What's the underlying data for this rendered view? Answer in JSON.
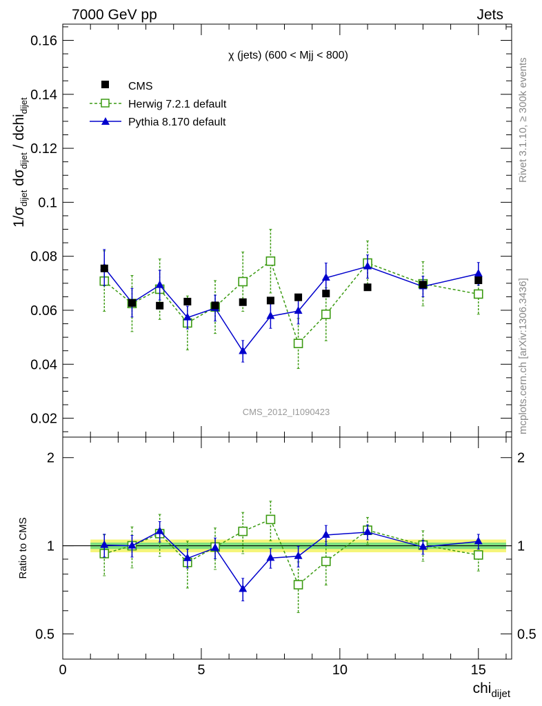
{
  "header": {
    "left": "7000 GeV pp",
    "right": "Jets"
  },
  "side_labels": {
    "rivet": "Rivet 3.1.10, ≥ 300k events",
    "mcplots": "mcplots.cern.ch [arXiv:1306.3436]"
  },
  "chart_data": [
    {
      "type": "scatter",
      "panel": "main",
      "title": "χ (jets) (600 < Mjj <  800)",
      "ylabel_parts": {
        "a": "1/σ",
        "a_sub": "dijet",
        "b": " dσ",
        "b_sub": "dijet",
        "c": " / dchi",
        "c_sub": "dijet"
      },
      "xlim": [
        0,
        16.2
      ],
      "ylim": [
        0.013,
        0.166
      ],
      "yticks": [
        0.02,
        0.04,
        0.06,
        0.08,
        0.1,
        0.12,
        0.14,
        0.16
      ],
      "ytick_labels": [
        "0.02",
        "0.04",
        "0.06",
        "0.08",
        "0.1",
        "0.12",
        "0.14",
        "0.16"
      ],
      "watermark": "CMS_2012_I1090423",
      "legend_position": "top-left",
      "series": [
        {
          "name": "CMS",
          "style": "data",
          "color": "#000000",
          "x": [
            1.5,
            2.5,
            3.5,
            4.5,
            5.5,
            6.5,
            7.5,
            8.5,
            9.5,
            11,
            13,
            15
          ],
          "y": [
            0.0755,
            0.0627,
            0.0617,
            0.0632,
            0.0618,
            0.063,
            0.0636,
            0.0648,
            0.0662,
            0.0685,
            0.0695,
            0.0711
          ]
        },
        {
          "name": "Herwig 7.2.1 default",
          "style": "dashed-open-square",
          "color": "#3a9a10",
          "x": [
            1.5,
            2.5,
            3.5,
            4.5,
            5.5,
            6.5,
            7.5,
            8.5,
            9.5,
            11,
            13,
            15
          ],
          "y": [
            0.0708,
            0.0625,
            0.0678,
            0.0553,
            0.0612,
            0.0706,
            0.0782,
            0.0477,
            0.0585,
            0.0775,
            0.0698,
            0.066
          ],
          "err": [
            0.0112,
            0.0104,
            0.0112,
            0.01,
            0.0098,
            0.011,
            0.0118,
            0.0093,
            0.0098,
            0.0082,
            0.0082,
            0.0075
          ]
        },
        {
          "name": "Pythia 8.170 default",
          "style": "solid-filled-triangle",
          "color": "#0000cc",
          "x": [
            1.5,
            2.5,
            3.5,
            4.5,
            5.5,
            6.5,
            7.5,
            8.5,
            9.5,
            11,
            13,
            15
          ],
          "y": [
            0.0758,
            0.0628,
            0.0693,
            0.0573,
            0.0608,
            0.0448,
            0.0578,
            0.0597,
            0.072,
            0.0762,
            0.0688,
            0.0735
          ],
          "err": [
            0.0067,
            0.0053,
            0.0055,
            0.0042,
            0.0048,
            0.004,
            0.0045,
            0.0048,
            0.0055,
            0.0043,
            0.0038,
            0.0042
          ]
        }
      ]
    },
    {
      "type": "scatter",
      "panel": "ratio",
      "ylabel": "Ratio to CMS",
      "xlabel": "chi",
      "xlabel_sub": "dijet",
      "xlim": [
        0,
        16.2
      ],
      "xticks": [
        0,
        5,
        10,
        15
      ],
      "xtick_labels": [
        "0",
        "5",
        "10",
        "15"
      ],
      "ylim": [
        0.41,
        2.35
      ],
      "yscale": "log",
      "yticks": [
        0.5,
        1,
        2
      ],
      "ytick_labels": [
        "0.5",
        "1",
        "2"
      ],
      "band": {
        "x_range": [
          1,
          16
        ],
        "inner": [
          0.975,
          1.025
        ],
        "outer": [
          0.95,
          1.05
        ],
        "inner_color": "#7fe07f",
        "outer_color": "#f5f57a"
      },
      "series": [
        {
          "name": "Herwig 7.2.1 default",
          "color": "#3a9a10",
          "x": [
            1.5,
            2.5,
            3.5,
            4.5,
            5.5,
            6.5,
            7.5,
            8.5,
            9.5,
            11,
            13,
            15
          ],
          "y": [
            0.94,
            1.0,
            1.1,
            0.877,
            0.99,
            1.12,
            1.23,
            0.736,
            0.884,
            1.13,
            1.005,
            0.93
          ],
          "err": [
            0.15,
            0.16,
            0.18,
            0.16,
            0.16,
            0.18,
            0.19,
            0.145,
            0.15,
            0.12,
            0.12,
            0.11
          ]
        },
        {
          "name": "Pythia 8.170 default",
          "color": "#0000cc",
          "x": [
            1.5,
            2.5,
            3.5,
            4.5,
            5.5,
            6.5,
            7.5,
            8.5,
            9.5,
            11,
            13,
            15
          ],
          "y": [
            1.005,
            1.0,
            1.12,
            0.906,
            0.983,
            0.711,
            0.908,
            0.921,
            1.088,
            1.113,
            0.99,
            1.034
          ],
          "err": [
            0.09,
            0.085,
            0.09,
            0.067,
            0.08,
            0.063,
            0.07,
            0.075,
            0.085,
            0.065,
            0.055,
            0.06
          ]
        }
      ]
    }
  ]
}
